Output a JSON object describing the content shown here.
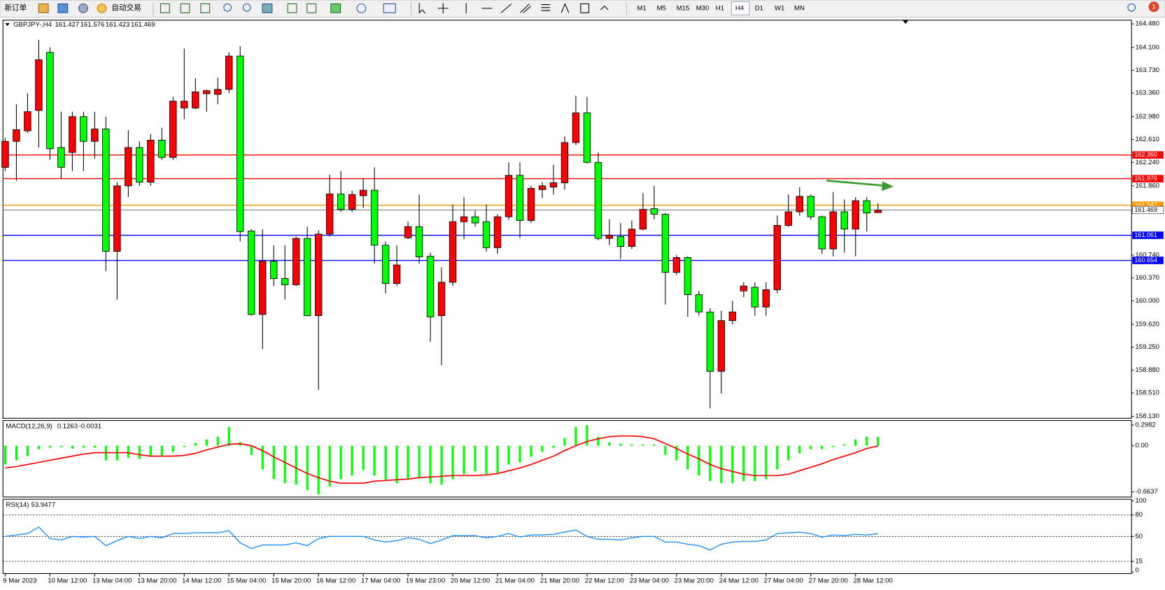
{
  "toolbar": {
    "new_order": "新订单",
    "auto_trading": "自动交易",
    "timeframes": [
      "M1",
      "M5",
      "M15",
      "M30",
      "H1",
      "H4",
      "D1",
      "W1",
      "MN"
    ],
    "active_timeframe": 5,
    "badge": "1"
  },
  "chart_data": [
    {
      "type": "candlestick",
      "title": "GBPJPY-,H4",
      "categories": [
        "9 Mar 2023",
        null,
        null,
        null,
        "10 Mar 12:00",
        null,
        null,
        null,
        "13 Mar 04:00",
        null,
        null,
        null,
        "13 Mar 20:00",
        null,
        null,
        null,
        "14 Mar 12:00",
        null,
        null,
        null,
        "15 Mar 04:00",
        null,
        null,
        null,
        "15 Mar 20:00",
        null,
        null,
        null,
        "16 Mar 12:00",
        null,
        null,
        null,
        "17 Mar 04:00",
        null,
        null,
        null,
        "19 Mar 23:00",
        null,
        null,
        null,
        "20 Mar 12:00",
        null,
        null,
        null,
        "21 Mar 04:00",
        null,
        null,
        null,
        "21 Mar 20:00",
        null,
        null,
        null,
        "22 Mar 12:00",
        null,
        null,
        null,
        "23 Mar 04:00",
        null,
        null,
        null,
        "23 Mar 20:00",
        null,
        null,
        null,
        "24 Mar 12:00",
        null,
        null,
        null,
        "27 Mar 04:00",
        null,
        null,
        null,
        "27 Mar 20:00",
        null,
        null,
        null,
        "28 Mar 12:00",
        null,
        null
      ],
      "open": [
        162.16,
        162.58,
        162.75,
        163.08,
        164.02,
        162.48,
        162.4,
        162.98,
        162.58,
        162.78,
        160.8,
        161.86,
        162.48,
        161.92,
        162.6,
        162.32,
        163.12,
        163.12,
        163.35,
        163.34,
        163.42,
        163.96,
        161.13,
        159.78,
        160.64,
        160.36,
        160.26,
        161.01,
        159.76,
        161.08,
        161.73,
        161.48,
        161.7,
        161.79,
        160.9,
        160.28,
        161.02,
        161.2,
        160.72,
        159.76,
        160.3,
        161.28,
        161.36,
        161.28,
        160.86,
        161.36,
        162.03,
        161.3,
        161.8,
        161.84,
        161.91,
        162.56,
        163.04,
        162.24,
        161.01,
        161.04,
        160.88,
        161.16,
        161.49,
        161.4,
        160.46,
        160.7,
        160.1,
        159.82,
        158.86,
        159.68,
        160.16,
        160.22,
        159.9,
        160.18,
        161.22,
        161.44,
        161.69,
        161.36,
        160.84,
        161.44,
        161.16,
        161.62,
        161.427
      ],
      "high": [
        162.64,
        163.18,
        163.36,
        164.22,
        164.1,
        163.06,
        163.06,
        163.06,
        163.06,
        162.98,
        161.92,
        162.76,
        162.58,
        162.7,
        162.8,
        163.3,
        164.08,
        163.6,
        163.42,
        163.61,
        164.02,
        164.12,
        161.16,
        161.16,
        160.9,
        160.9,
        161.04,
        161.2,
        161.14,
        162.04,
        162.1,
        161.78,
        161.98,
        162.16,
        160.96,
        160.9,
        161.28,
        161.72,
        160.78,
        160.54,
        161.56,
        161.68,
        161.46,
        161.56,
        161.4,
        162.24,
        162.24,
        161.86,
        161.92,
        162.2,
        162.66,
        163.32,
        163.3,
        162.4,
        161.32,
        161.26,
        161.3,
        161.74,
        161.86,
        161.42,
        160.74,
        160.72,
        160.16,
        159.88,
        159.84,
        160.0,
        160.3,
        160.3,
        160.3,
        161.38,
        161.72,
        161.84,
        161.72,
        161.38,
        161.76,
        161.64,
        161.68,
        161.68,
        161.576
      ],
      "low": [
        162.1,
        161.94,
        162.72,
        162.48,
        162.28,
        161.98,
        162.1,
        162.1,
        162.3,
        160.48,
        160.02,
        161.68,
        161.86,
        161.86,
        162.28,
        162.28,
        162.94,
        163.1,
        163.06,
        163.18,
        163.36,
        160.96,
        159.76,
        159.22,
        160.24,
        160.02,
        160.24,
        159.76,
        158.56,
        161.04,
        161.44,
        161.44,
        161.5,
        160.6,
        160.12,
        160.24,
        161.0,
        160.6,
        159.34,
        158.96,
        160.24,
        161.0,
        161.2,
        160.8,
        160.76,
        161.31,
        161.02,
        161.26,
        161.66,
        161.72,
        161.8,
        162.52,
        162.22,
        160.98,
        160.9,
        160.68,
        160.84,
        161.14,
        161.32,
        159.94,
        160.42,
        159.74,
        159.76,
        158.26,
        158.5,
        159.62,
        160.06,
        159.76,
        159.76,
        160.12,
        161.2,
        161.38,
        161.31,
        160.76,
        160.72,
        160.78,
        160.72,
        161.12,
        161.423
      ],
      "close": [
        162.58,
        162.77,
        163.06,
        163.9,
        162.46,
        162.16,
        162.98,
        162.58,
        162.78,
        160.8,
        161.86,
        162.48,
        161.92,
        162.6,
        162.32,
        163.23,
        163.23,
        163.38,
        163.4,
        163.42,
        163.96,
        161.12,
        159.78,
        160.64,
        160.36,
        160.26,
        161.01,
        159.76,
        161.08,
        161.73,
        161.48,
        161.72,
        161.79,
        160.9,
        160.28,
        160.58,
        161.2,
        160.71,
        159.74,
        160.3,
        161.28,
        161.36,
        161.26,
        160.86,
        161.36,
        162.03,
        161.3,
        161.82,
        161.86,
        161.91,
        162.56,
        163.04,
        162.24,
        161.01,
        161.06,
        160.88,
        161.16,
        161.48,
        161.4,
        160.46,
        160.7,
        160.1,
        159.82,
        158.86,
        159.68,
        159.82,
        160.24,
        159.9,
        160.18,
        161.22,
        161.44,
        161.69,
        161.36,
        160.84,
        161.44,
        161.16,
        161.62,
        161.42,
        161.469
      ],
      "up_color": "#ff0000",
      "down_color": "#00ff00",
      "price_line_color": "#808080",
      "ylim": [
        158.1,
        164.54
      ],
      "yticks": [
        {
          "value": 164.48,
          "label": "164.480"
        },
        {
          "value": 164.1,
          "label": "164.100"
        },
        {
          "value": 163.73,
          "label": "163.730"
        },
        {
          "value": 163.36,
          "label": "163.360"
        },
        {
          "value": 162.98,
          "label": "162.980"
        },
        {
          "value": 162.61,
          "label": "162.610"
        },
        {
          "value": 162.24,
          "label": "162.240"
        },
        {
          "value": 161.86,
          "label": "161.860"
        },
        {
          "value": 160.74,
          "label": "160.740"
        },
        {
          "value": 160.37,
          "label": "160.370"
        },
        {
          "value": 160.0,
          "label": "160.000"
        },
        {
          "value": 159.62,
          "label": "159.620"
        },
        {
          "value": 159.25,
          "label": "159.250"
        },
        {
          "value": 158.88,
          "label": "158.880"
        },
        {
          "value": 158.51,
          "label": "158.510"
        },
        {
          "value": 158.13,
          "label": "158.130"
        }
      ],
      "levels": [
        {
          "value": 162.36,
          "label": "162.360",
          "color": "#ff0000"
        },
        {
          "value": 161.976,
          "color": "#ff0000"
        },
        {
          "value": 161.547,
          "color": "#ff9900"
        },
        {
          "value": 161.061,
          "color": "#0000ff"
        },
        {
          "value": 160.654,
          "color": "#0000ff"
        }
      ],
      "arrow_color": "#3d9a2f"
    },
    {
      "type": "macd",
      "title": "MACD(12,26,9)",
      "histogram": {
        "color": "#00ff00",
        "values": [
          -0.27,
          -0.21,
          -0.15,
          -0.05,
          -0.03,
          -0.02,
          -0.04,
          -0.03,
          -0.03,
          -0.21,
          -0.21,
          -0.17,
          -0.19,
          -0.16,
          -0.15,
          -0.09,
          -0.02,
          0.04,
          0.09,
          0.13,
          0.27,
          0.05,
          -0.13,
          -0.34,
          -0.48,
          -0.54,
          -0.56,
          -0.64,
          -0.7,
          -0.59,
          -0.48,
          -0.43,
          -0.35,
          -0.43,
          -0.51,
          -0.54,
          -0.48,
          -0.46,
          -0.54,
          -0.56,
          -0.48,
          -0.41,
          -0.37,
          -0.41,
          -0.39,
          -0.27,
          -0.24,
          -0.16,
          -0.09,
          -0.03,
          0.11,
          0.27,
          0.3,
          0.13,
          0.05,
          0.03,
          0.02,
          0.02,
          0.02,
          -0.13,
          -0.21,
          -0.34,
          -0.43,
          -0.51,
          -0.54,
          -0.54,
          -0.51,
          -0.51,
          -0.48,
          -0.34,
          -0.21,
          -0.11,
          -0.05,
          -0.05,
          -0.02,
          0.02,
          0.09,
          0.13,
          0.1263
        ]
      },
      "signal": {
        "color": "#ff0000",
        "values": [
          -0.32,
          -0.3,
          -0.27,
          -0.24,
          -0.21,
          -0.18,
          -0.15,
          -0.12,
          -0.1,
          -0.1,
          -0.1,
          -0.1,
          -0.13,
          -0.15,
          -0.15,
          -0.15,
          -0.14,
          -0.11,
          -0.06,
          -0.02,
          0.02,
          0.03,
          0.0,
          -0.07,
          -0.16,
          -0.24,
          -0.32,
          -0.4,
          -0.46,
          -0.51,
          -0.54,
          -0.54,
          -0.54,
          -0.51,
          -0.5,
          -0.49,
          -0.48,
          -0.46,
          -0.45,
          -0.44,
          -0.43,
          -0.43,
          -0.43,
          -0.42,
          -0.4,
          -0.36,
          -0.32,
          -0.27,
          -0.21,
          -0.15,
          -0.07,
          0.0,
          0.06,
          0.1,
          0.13,
          0.14,
          0.14,
          0.13,
          0.1,
          0.03,
          -0.04,
          -0.12,
          -0.19,
          -0.27,
          -0.33,
          -0.37,
          -0.41,
          -0.43,
          -0.43,
          -0.43,
          -0.41,
          -0.36,
          -0.31,
          -0.26,
          -0.2,
          -0.15,
          -0.1,
          -0.04,
          -0.0031
        ]
      },
      "ylim": [
        -0.728,
        0.352
      ],
      "yticks": [
        0.2982,
        {
          "value": 0,
          "label": "0.00"
        },
        -0.6637
      ]
    },
    {
      "type": "rsi",
      "title": "RSI(14)",
      "color": "#1e90ff",
      "values": [
        50,
        52,
        54,
        63,
        47,
        45,
        50,
        49,
        50,
        37,
        44,
        50,
        47,
        50,
        48,
        54,
        54,
        55,
        55,
        55,
        58,
        41,
        33,
        38,
        38,
        38,
        41,
        37,
        47,
        50,
        50,
        50,
        50,
        45,
        42,
        44,
        48,
        46,
        40,
        45,
        51,
        51,
        51,
        48,
        50,
        54,
        49,
        52,
        52,
        53,
        56,
        59,
        50,
        46,
        46,
        45,
        48,
        50,
        50,
        42,
        42,
        39,
        37,
        31,
        39,
        42,
        43,
        43,
        45,
        54,
        55,
        56,
        54,
        49,
        52,
        51,
        53,
        52,
        53.9477
      ],
      "ylim": [
        0,
        100
      ],
      "yticks": [
        100,
        80,
        50,
        15,
        0
      ],
      "levels": [
        80,
        50,
        15
      ]
    }
  ]
}
